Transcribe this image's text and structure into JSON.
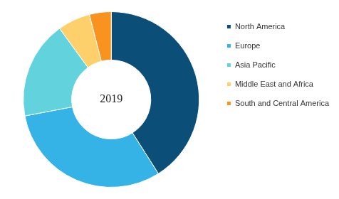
{
  "chart_data": {
    "type": "doughnut",
    "title": "2019",
    "categories": [
      "North America",
      "Europe",
      "Asia Pacific",
      "Middle East and Africa",
      "South and Central America"
    ],
    "values": [
      41,
      31,
      18,
      6,
      4
    ],
    "colors": [
      "#0b4f79",
      "#36b3e6",
      "#62d3dc",
      "#fdd06c",
      "#f7931e"
    ],
    "legend": "right"
  }
}
